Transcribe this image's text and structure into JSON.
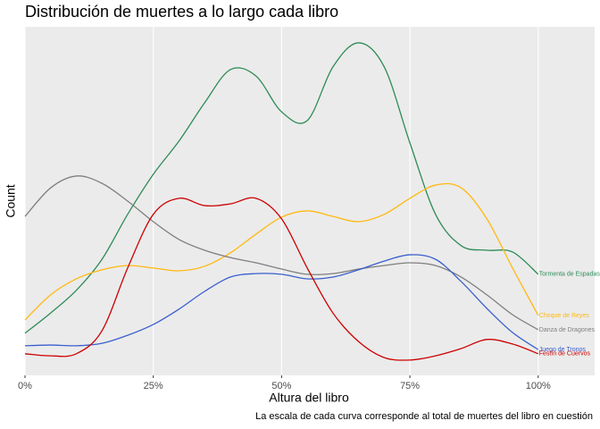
{
  "chart_data": {
    "type": "line",
    "title": "Distribución de muertes a lo largo cada libro",
    "x_label": "Altura del libro",
    "y_label": "Count",
    "caption": "La escala de cada curva corresponde al total de muertes del libro en cuestión",
    "x": [
      0,
      5,
      10,
      15,
      20,
      25,
      30,
      35,
      40,
      45,
      50,
      55,
      60,
      65,
      70,
      75,
      80,
      85,
      90,
      95,
      100
    ],
    "xlim": [
      0,
      111
    ],
    "xticks": [
      {
        "value": 0,
        "label": "0%"
      },
      {
        "value": 25,
        "label": "25%"
      },
      {
        "value": 50,
        "label": "50%"
      },
      {
        "value": 75,
        "label": "75%"
      },
      {
        "value": 100,
        "label": "100%"
      }
    ],
    "ylim": [
      0,
      100
    ],
    "grid": true,
    "series": [
      {
        "name": "Tormenta de Espadas",
        "color": "#2e8b57",
        "values": [
          12.1,
          17.9,
          24.4,
          33.3,
          46.2,
          57.7,
          67.2,
          78.2,
          87.7,
          85.9,
          75.6,
          73.1,
          88.5,
          95.4,
          88.5,
          66.7,
          46.2,
          37.2,
          35.9,
          35.4,
          29.0
        ]
      },
      {
        "name": "Choque de Reyes",
        "color": "#ffb90f",
        "values": [
          15.9,
          23.1,
          27.7,
          30.3,
          31.5,
          30.8,
          30.0,
          31.3,
          35.1,
          40.5,
          45.4,
          47.2,
          45.6,
          44.1,
          46.2,
          50.8,
          54.6,
          53.8,
          44.9,
          30.8,
          17.2
        ]
      },
      {
        "name": "Danza de Dragones",
        "color": "#7f7f7f",
        "values": [
          45.6,
          53.8,
          57.2,
          55.1,
          50.0,
          44.1,
          39.0,
          35.9,
          33.8,
          32.3,
          30.5,
          29.0,
          29.2,
          30.5,
          31.5,
          32.3,
          31.5,
          28.2,
          23.1,
          17.4,
          13.1
        ]
      },
      {
        "name": "Juego de Tronos",
        "color": "#3a5fcd",
        "values": [
          8.5,
          8.7,
          8.5,
          9.2,
          11.5,
          14.6,
          19.0,
          24.1,
          28.2,
          29.2,
          29.0,
          27.7,
          28.2,
          30.3,
          32.8,
          34.6,
          33.3,
          26.9,
          19.2,
          12.3,
          7.4
        ]
      },
      {
        "name": "Festín de Cuervos",
        "color": "#cd0000",
        "values": [
          6.2,
          5.6,
          6.2,
          12.8,
          30.8,
          46.2,
          50.8,
          48.7,
          49.2,
          50.8,
          44.9,
          30.8,
          17.9,
          9.7,
          5.1,
          4.4,
          5.6,
          7.7,
          10.3,
          9.0,
          6.2
        ]
      }
    ]
  }
}
